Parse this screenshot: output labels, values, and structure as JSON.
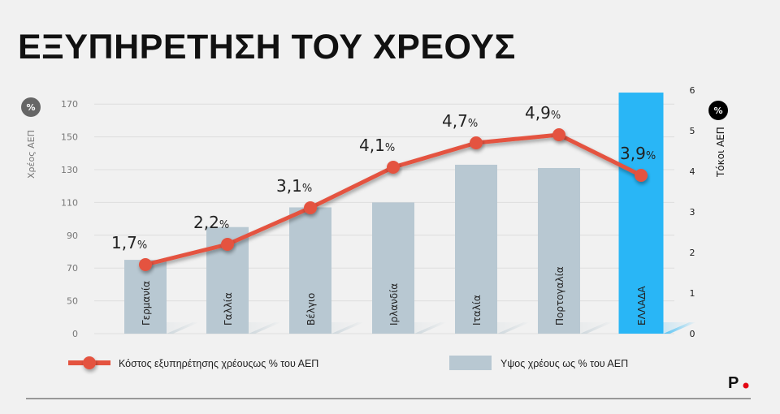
{
  "title": "ΕΞΥΠΗΡΕΤΗΣΗ ΤΟΥ ΧΡΕΟΥΣ",
  "logo": "P.",
  "colors": {
    "bar": "#b8c8d2",
    "highlight": "#29b6f6",
    "line": "#e4533f",
    "background": "#f1f1f1"
  },
  "chart_data": {
    "type": "bar+line",
    "categories": [
      "Γερμανία",
      "Γαλλία",
      "Βέλγιο",
      "Ιρλανδία",
      "Ιταλία",
      "Πορτογαλία",
      "ΕΛΛΑΔΑ"
    ],
    "highlight_category": "ΕΛΛΑΔΑ",
    "left_axis": {
      "label": "Χρέος ΑΕΠ",
      "unit": "%",
      "ticks": [
        0,
        50,
        70,
        90,
        110,
        130,
        150,
        170
      ]
    },
    "right_axis": {
      "label": "Τόκοι ΑΕΠ",
      "unit": "%",
      "ticks": [
        0,
        1,
        2,
        3,
        4,
        5,
        6
      ],
      "ylim": [
        0,
        6
      ]
    },
    "series": [
      {
        "name": "Υψος χρέους ως % του ΑΕΠ",
        "type": "bar",
        "axis": "left",
        "values": [
          75,
          95,
          107,
          110,
          133,
          131,
          177
        ]
      },
      {
        "name": "Κόστος εξυπηρέτησης χρέουςως % του ΑΕΠ",
        "type": "line",
        "axis": "right",
        "values": [
          1.7,
          2.2,
          3.1,
          4.1,
          4.7,
          4.9,
          3.9
        ],
        "labels": [
          "1,7",
          "2,2",
          "3,1",
          "4,1",
          "4,7",
          "4,9",
          "3,9"
        ],
        "label_suffix": "%"
      }
    ],
    "legend": [
      "Κόστος εξυπηρέτησης χρέουςως % του ΑΕΠ",
      "Υψος χρέους ως % του ΑΕΠ"
    ],
    "legend_position": "bottom",
    "grid": true
  }
}
